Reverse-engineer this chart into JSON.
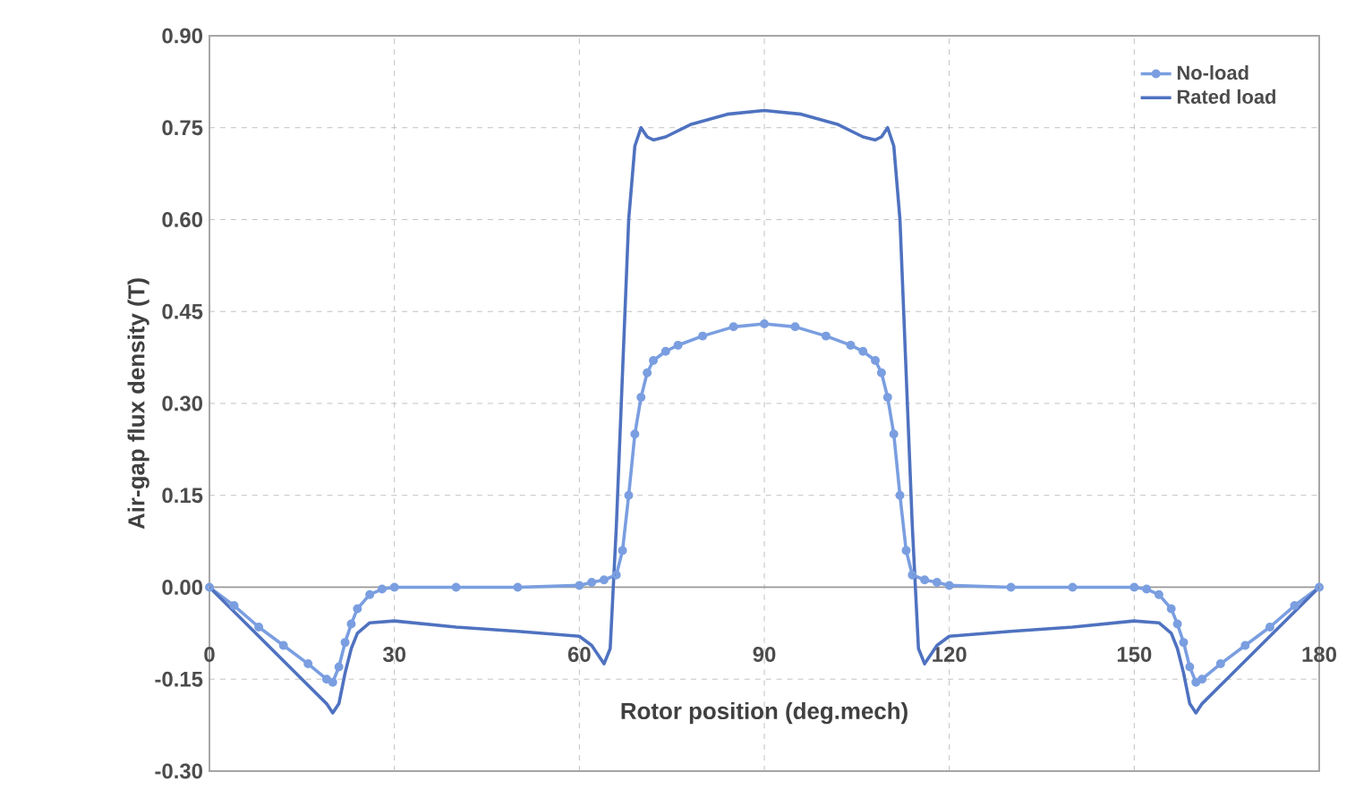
{
  "chart_data": {
    "type": "line",
    "xlabel": "Rotor  position  (deg.mech)",
    "ylabel": "Air-gap flux density  (T)",
    "xlim": [
      0,
      180
    ],
    "xticks": [
      0,
      30,
      60,
      90,
      120,
      150,
      180
    ],
    "ylim": [
      -0.3,
      0.9
    ],
    "yticks": [
      {
        "value": -0.3,
        "label": "-0.30"
      },
      {
        "value": -0.15,
        "label": "-0.15"
      },
      {
        "value": 0,
        "label": "0.00"
      },
      {
        "value": 0.15,
        "label": "0.15"
      },
      {
        "value": 0.3,
        "label": "0.30"
      },
      {
        "value": 0.45,
        "label": "0.45"
      },
      {
        "value": 0.6,
        "label": "0.60"
      },
      {
        "value": 0.75,
        "label": "0.75"
      },
      {
        "value": 0.9,
        "label": "0.90"
      }
    ],
    "grid": true,
    "legend": "top right",
    "series": [
      {
        "name": "No-load",
        "color": "#7a9ee0",
        "marker": "circle",
        "x": [
          0,
          4,
          8,
          12,
          16,
          19,
          20,
          21,
          22,
          23,
          24,
          26,
          28,
          30,
          40,
          50,
          60,
          62,
          64,
          66,
          67,
          68,
          69,
          70,
          71,
          72,
          74,
          76,
          80,
          85,
          90,
          95,
          100,
          104,
          106,
          108,
          109,
          110,
          111,
          112,
          113,
          114,
          116,
          118,
          120,
          130,
          140,
          150,
          152,
          154,
          156,
          157,
          158,
          159,
          160,
          161,
          164,
          168,
          172,
          176,
          180
        ],
        "values": [
          0,
          -0.03,
          -0.065,
          -0.095,
          -0.125,
          -0.15,
          -0.155,
          -0.13,
          -0.09,
          -0.06,
          -0.035,
          -0.012,
          -0.003,
          0,
          0,
          0,
          0.003,
          0.008,
          0.012,
          0.02,
          0.06,
          0.15,
          0.25,
          0.31,
          0.35,
          0.37,
          0.385,
          0.395,
          0.41,
          0.425,
          0.43,
          0.425,
          0.41,
          0.395,
          0.385,
          0.37,
          0.35,
          0.31,
          0.25,
          0.15,
          0.06,
          0.02,
          0.012,
          0.008,
          0.003,
          0,
          0,
          0,
          -0.003,
          -0.012,
          -0.035,
          -0.06,
          -0.09,
          -0.13,
          -0.155,
          -0.15,
          -0.125,
          -0.095,
          -0.065,
          -0.03,
          0
        ]
      },
      {
        "name": "Rated load",
        "color": "#4f72c0",
        "marker": "none",
        "x": [
          0,
          5,
          10,
          15,
          19,
          20,
          21,
          22,
          23,
          24,
          26,
          30,
          40,
          50,
          60,
          62,
          64,
          65,
          66,
          67,
          68,
          69,
          70,
          71,
          72,
          74,
          78,
          84,
          90,
          96,
          102,
          106,
          108,
          109,
          110,
          111,
          112,
          113,
          114,
          115,
          116,
          118,
          120,
          130,
          140,
          150,
          154,
          156,
          157,
          158,
          159,
          160,
          161,
          165,
          170,
          175,
          180
        ],
        "values": [
          0,
          -0.05,
          -0.1,
          -0.15,
          -0.19,
          -0.205,
          -0.19,
          -0.14,
          -0.1,
          -0.075,
          -0.058,
          -0.055,
          -0.065,
          -0.072,
          -0.08,
          -0.095,
          -0.125,
          -0.1,
          0.1,
          0.35,
          0.6,
          0.72,
          0.75,
          0.735,
          0.73,
          0.735,
          0.755,
          0.772,
          0.778,
          0.772,
          0.755,
          0.735,
          0.73,
          0.735,
          0.75,
          0.72,
          0.6,
          0.35,
          0.1,
          -0.1,
          -0.125,
          -0.095,
          -0.08,
          -0.072,
          -0.065,
          -0.055,
          -0.058,
          -0.075,
          -0.1,
          -0.14,
          -0.19,
          -0.205,
          -0.19,
          -0.15,
          -0.1,
          -0.05,
          0
        ]
      }
    ]
  }
}
